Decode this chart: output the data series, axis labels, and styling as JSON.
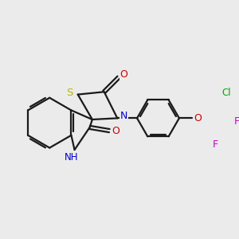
{
  "bg_color": "#ebebeb",
  "bond_color": "#1a1a1a",
  "atom_colors": {
    "S": "#b8b800",
    "N": "#0000cc",
    "O": "#cc0000",
    "F": "#cc00cc",
    "Cl": "#00aa00"
  },
  "figsize": [
    3.0,
    3.0
  ],
  "dpi": 100
}
